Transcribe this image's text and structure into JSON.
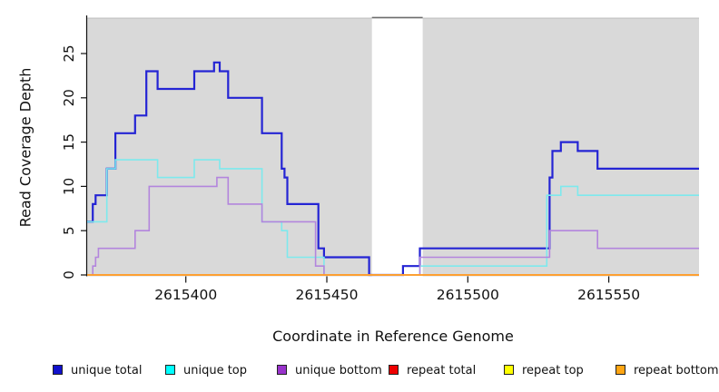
{
  "chart_data": {
    "type": "line",
    "subtype": "step",
    "title": "",
    "xlabel": "Coordinate in Reference Genome",
    "ylabel": "Read Coverage Depth",
    "xlim": [
      2615365,
      2615582
    ],
    "ylim": [
      0,
      29
    ],
    "xticks": [
      2615400,
      2615450,
      2615500,
      2615550
    ],
    "yticks": [
      0,
      5,
      10,
      15,
      20,
      25
    ],
    "grid": false,
    "legend_position": "bottom",
    "plot_background": "#d9d9d9",
    "highlight_band": {
      "x0": 2615466,
      "x1": 2615484,
      "color": "#ffffff",
      "top_border": "#6a6a6a"
    },
    "series": [
      {
        "name": "unique total",
        "color": "#2424d4",
        "legend_color": "#1111cc",
        "line_width": 2.2,
        "steps": [
          [
            2615365,
            6
          ],
          [
            2615367,
            8
          ],
          [
            2615368,
            9
          ],
          [
            2615372,
            12
          ],
          [
            2615375,
            16
          ],
          [
            2615382,
            18
          ],
          [
            2615386,
            23
          ],
          [
            2615390,
            21
          ],
          [
            2615403,
            23
          ],
          [
            2615410,
            24
          ],
          [
            2615412,
            23
          ],
          [
            2615415,
            20
          ],
          [
            2615427,
            16
          ],
          [
            2615434,
            12
          ],
          [
            2615435,
            11
          ],
          [
            2615436,
            8
          ],
          [
            2615447,
            3
          ],
          [
            2615449,
            2
          ],
          [
            2615465,
            0
          ],
          [
            2615477,
            1
          ],
          [
            2615483,
            3
          ],
          [
            2615529,
            11
          ],
          [
            2615530,
            14
          ],
          [
            2615533,
            15
          ],
          [
            2615539,
            14
          ],
          [
            2615546,
            12
          ]
        ]
      },
      {
        "name": "unique top",
        "color": "#7de9ed",
        "legend_color": "#00ffff",
        "line_width": 1.6,
        "steps": [
          [
            2615365,
            6
          ],
          [
            2615372,
            12
          ],
          [
            2615375,
            13
          ],
          [
            2615390,
            11
          ],
          [
            2615403,
            13
          ],
          [
            2615412,
            12
          ],
          [
            2615427,
            6
          ],
          [
            2615434,
            5
          ],
          [
            2615436,
            2
          ],
          [
            2615449,
            0
          ],
          [
            2615483,
            1
          ],
          [
            2615528,
            9
          ],
          [
            2615533,
            10
          ],
          [
            2615539,
            9
          ]
        ]
      },
      {
        "name": "unique bottom",
        "color": "#b385dd",
        "legend_color": "#9933cc",
        "line_width": 1.6,
        "steps": [
          [
            2615365,
            0
          ],
          [
            2615367,
            1
          ],
          [
            2615368,
            2
          ],
          [
            2615369,
            3
          ],
          [
            2615382,
            5
          ],
          [
            2615387,
            10
          ],
          [
            2615411,
            11
          ],
          [
            2615415,
            8
          ],
          [
            2615427,
            6
          ],
          [
            2615446,
            1
          ],
          [
            2615449,
            0
          ],
          [
            2615483,
            2
          ],
          [
            2615529,
            5
          ],
          [
            2615546,
            3
          ]
        ]
      },
      {
        "name": "repeat total",
        "color": "#dd1111",
        "legend_color": "#ee0000",
        "line_width": 1.6,
        "steps": [
          [
            2615365,
            0
          ]
        ]
      },
      {
        "name": "repeat top",
        "color": "#ffff33",
        "legend_color": "#ffff00",
        "line_width": 1.6,
        "steps": [
          [
            2615365,
            0
          ]
        ]
      },
      {
        "name": "repeat bottom",
        "color": "#ff9d2e",
        "legend_color": "#ffa513",
        "line_width": 1.8,
        "steps": [
          [
            2615365,
            0
          ]
        ]
      }
    ],
    "legend_item_x": [
      58,
      182,
      305,
      428,
      555,
      678
    ]
  }
}
